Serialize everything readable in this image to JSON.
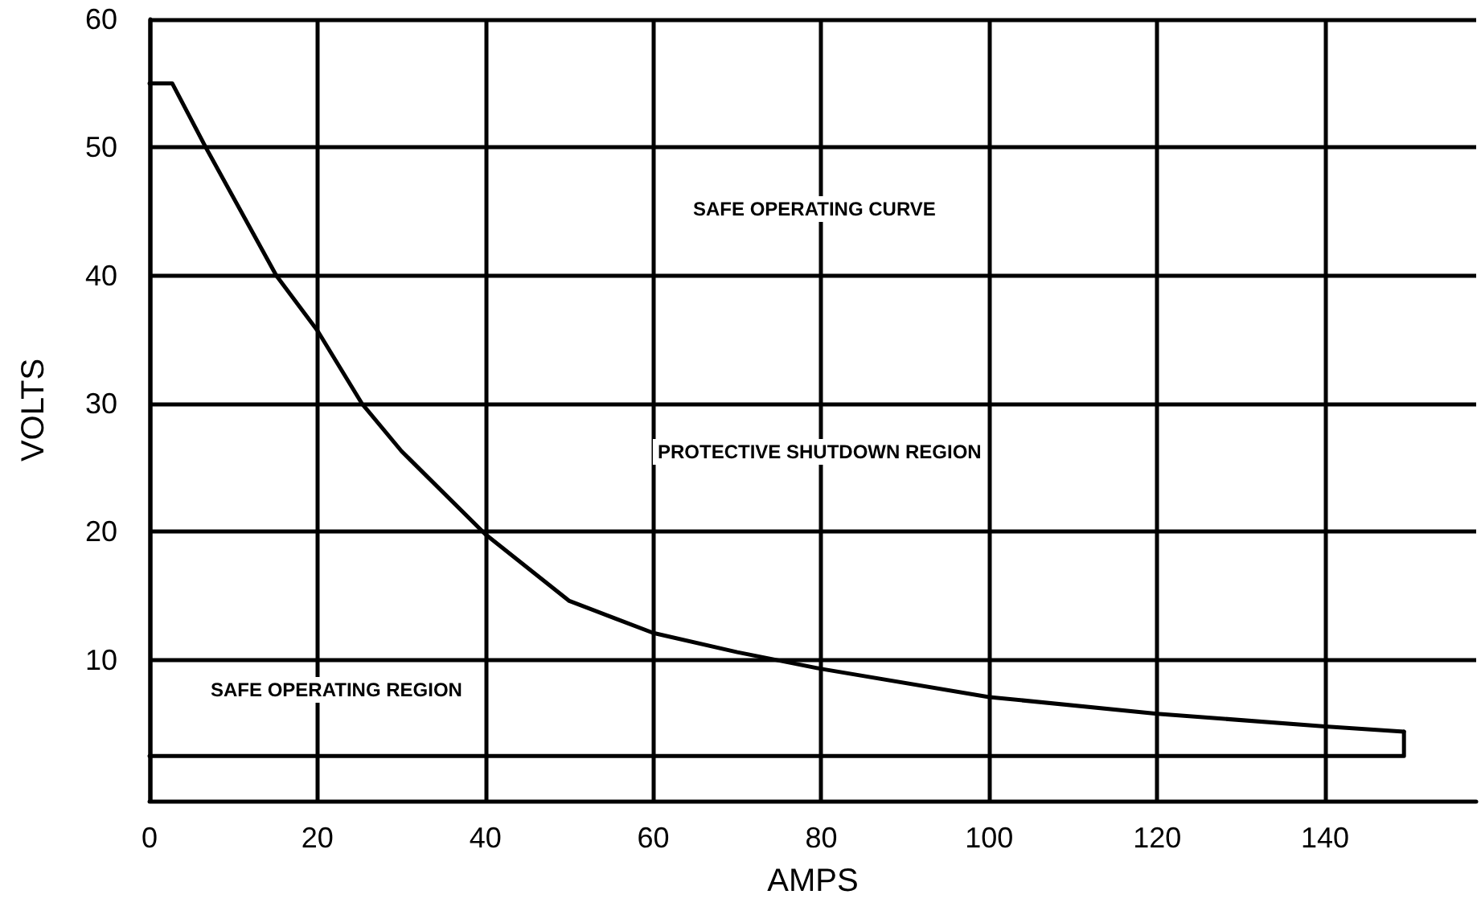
{
  "chart_data": {
    "type": "line",
    "xlabel": "AMPS",
    "ylabel": "VOLTS",
    "xlim": [
      0,
      158
    ],
    "ylim": [
      -1,
      60
    ],
    "xticks": [
      0,
      20,
      40,
      60,
      80,
      100,
      120,
      140
    ],
    "yticks": [
      10,
      20,
      30,
      40,
      50,
      60
    ],
    "grid": true,
    "marker": "none",
    "line_style": "solid",
    "series": [
      {
        "color": "#000000",
        "x": [
          0,
          2.7,
          6.7,
          15.1,
          20,
          25.3,
          30,
          40,
          50,
          60,
          70,
          80,
          100,
          120,
          140,
          149.4
        ],
        "values": [
          55,
          55,
          50,
          40,
          35.7,
          30,
          26.3,
          19.8,
          14.6,
          12.1,
          10.6,
          9.3,
          7.1,
          5.8,
          4.8,
          4.4
        ]
      },
      {
        "color": "#000000",
        "x": [
          149.4,
          149.4,
          0
        ],
        "values": [
          4.4,
          2.5,
          2.5
        ]
      }
    ],
    "annotations": [
      "SAFE OPERATING CURVE",
      "PROTECTIVE SHUTDOWN REGION",
      "SAFE OPERATING REGION"
    ]
  }
}
